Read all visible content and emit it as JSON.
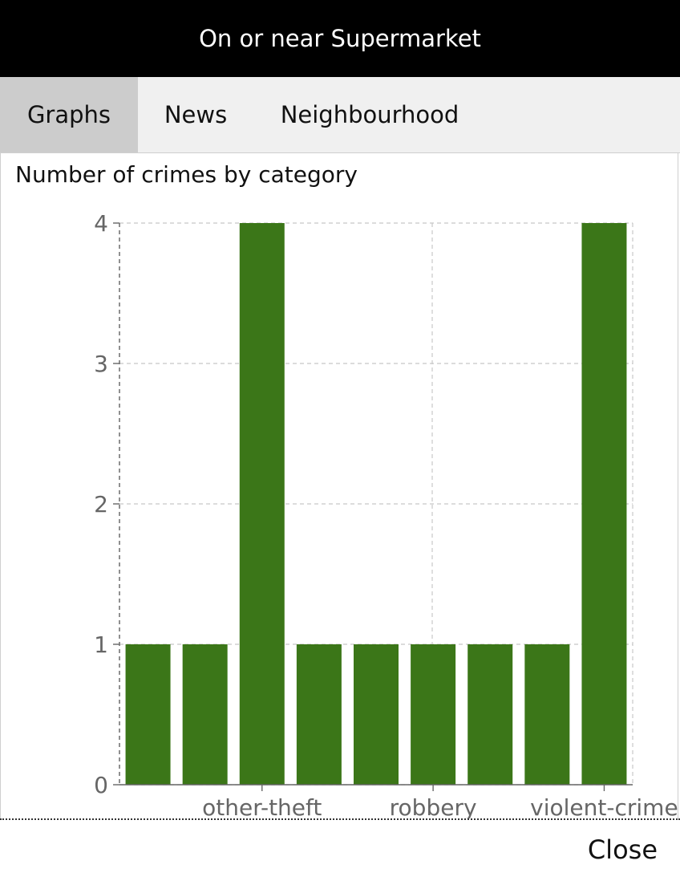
{
  "header": {
    "title": "On or near Supermarket"
  },
  "tabs": [
    {
      "label": "Graphs",
      "active": true
    },
    {
      "label": "News",
      "active": false
    },
    {
      "label": "Neighbourhood",
      "active": false
    }
  ],
  "footer": {
    "close_label": "Close"
  },
  "colors": {
    "bar": "#3b7618",
    "grid": "#c8c8c8",
    "axis": "#666666"
  },
  "chart_data": {
    "type": "bar",
    "title": "Number of crimes by category",
    "xlabel": "",
    "ylabel": "",
    "categories": [
      "",
      "",
      "other-theft",
      "",
      "",
      "robbery",
      "",
      "",
      "violent-crime"
    ],
    "values": [
      1,
      1,
      4,
      1,
      1,
      1,
      1,
      1,
      4
    ],
    "ylim": [
      0,
      4
    ],
    "yticks": [
      0,
      1,
      2,
      3,
      4
    ],
    "grid": true,
    "legend": "none"
  }
}
